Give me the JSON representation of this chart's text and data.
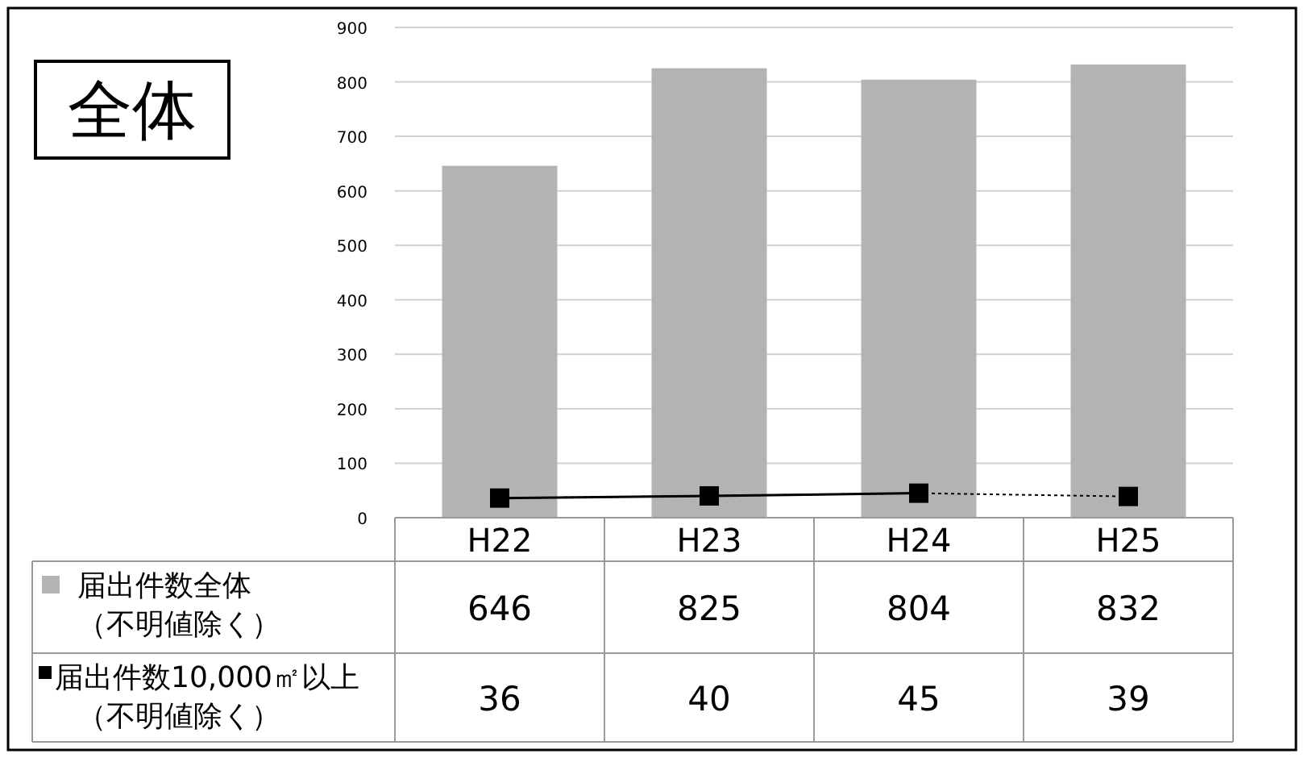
{
  "chart_data": {
    "type": "bar",
    "title": "全体",
    "categories": [
      "H22",
      "H23",
      "H24",
      "H25"
    ],
    "ylim": [
      0,
      900
    ],
    "yticks": [
      0,
      100,
      200,
      300,
      400,
      500,
      600,
      700,
      800,
      900
    ],
    "grid": "y",
    "legend": "bottom left",
    "series": [
      {
        "name": "届出件数全体（不明値除く）",
        "color": "#b3b3b3",
        "values": [
          646,
          825,
          804,
          832
        ],
        "value_labels": [
          "646",
          "825",
          "804",
          "832"
        ]
      },
      {
        "name": "届出件数10,000㎡以上（不明値除く）",
        "type": "line",
        "color": "#000000",
        "marker": "square",
        "line_style": "dotted",
        "values": [
          36,
          40,
          45,
          39
        ],
        "value_labels": [
          "36",
          "40",
          "45",
          "39"
        ]
      },
      {
        "type": "line",
        "color": "#000000",
        "line_style": "solid",
        "values": [
          36,
          40,
          45,
          null
        ]
      }
    ]
  }
}
